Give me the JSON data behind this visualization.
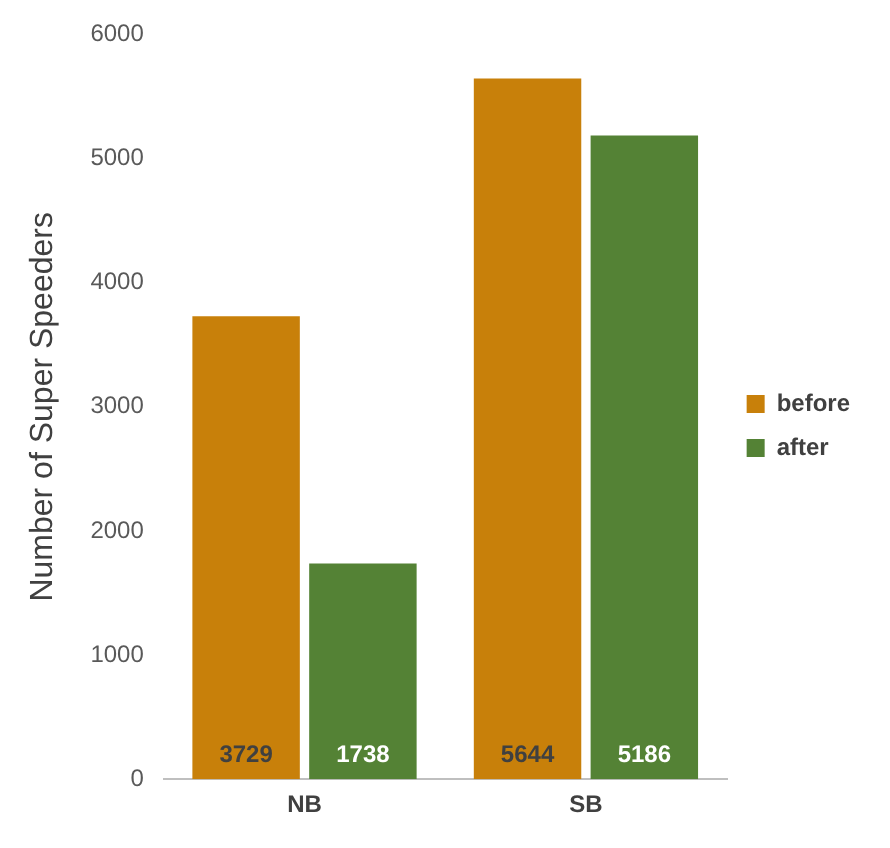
{
  "chart_data": {
    "type": "bar",
    "ylabel": "Number of Super Speeders",
    "categories": [
      "NB",
      "SB"
    ],
    "series": [
      {
        "name": "before",
        "color": "#c8800a",
        "values": [
          3729,
          5644
        ]
      },
      {
        "name": "after",
        "color": "#548235",
        "values": [
          1738,
          5186
        ]
      }
    ],
    "ylim": [
      0,
      6000
    ],
    "yticks": [
      0,
      1000,
      2000,
      3000,
      4000,
      5000,
      6000
    ],
    "grid": false,
    "legend": "right",
    "data_labels": true
  }
}
